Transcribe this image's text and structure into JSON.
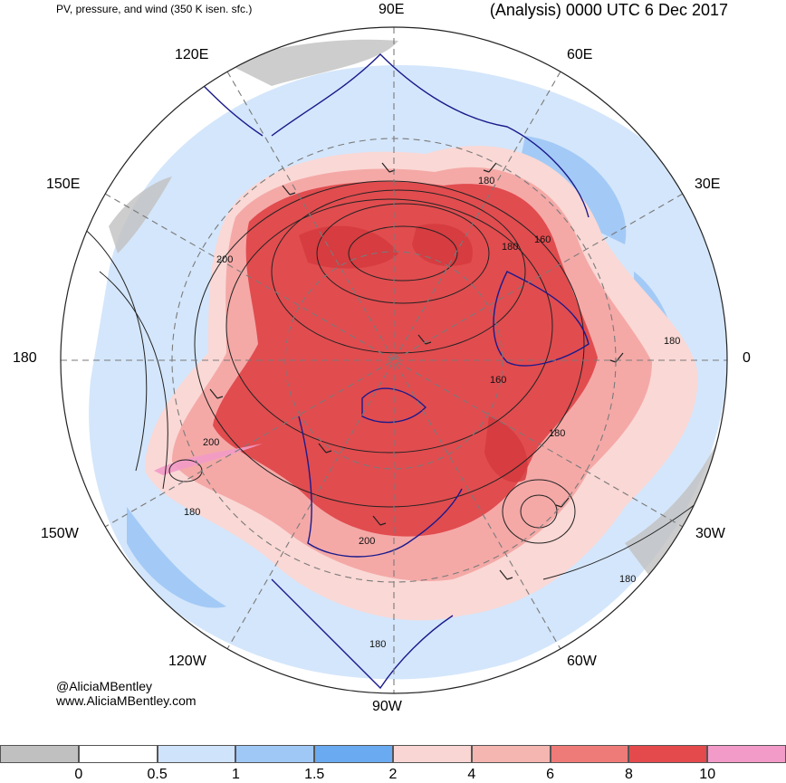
{
  "header": {
    "title_left": "PV, pressure, and wind (350 K isen. sfc.)",
    "title_right": "(Analysis) 0000 UTC 6 Dec 2017"
  },
  "longitude_labels": {
    "lon_90e": "90E",
    "lon_60e": "60E",
    "lon_30e": "30E",
    "lon_0": "0",
    "lon_30w": "30W",
    "lon_60w": "60W",
    "lon_90w": "90W",
    "lon_120w": "120W",
    "lon_150w": "150W",
    "lon_180": "180",
    "lon_150e": "150E",
    "lon_120e": "120E"
  },
  "contour_labels": [
    "180",
    "180",
    "160",
    "180",
    "200",
    "200",
    "180",
    "200",
    "160",
    "180",
    "180",
    "180"
  ],
  "credit": {
    "line1": "@AliciaMBentley",
    "line2": "www.AliciaMBentley.com"
  },
  "colorbar": {
    "colors": [
      "#c0c0c0",
      "#ffffff",
      "#cfe3fb",
      "#9fc8f7",
      "#6aaaf0",
      "#f9d6d3",
      "#f5b5b0",
      "#ef7b78",
      "#e44a4b",
      "#f29ac8"
    ],
    "labels": [
      "0",
      "0.5",
      "1",
      "1.5",
      "2",
      "4",
      "6",
      "8",
      "10"
    ]
  },
  "map_colors": {
    "ocean_high_pv": "#e14c4f",
    "pink_mid": "#f4a9a7",
    "light_pink": "#fad8d5",
    "light_blue": "#cfe3fb",
    "mid_blue": "#8fbdf3",
    "coast": "#1a1a8c",
    "contour": "#222222",
    "grid": "#7a7a7a"
  }
}
